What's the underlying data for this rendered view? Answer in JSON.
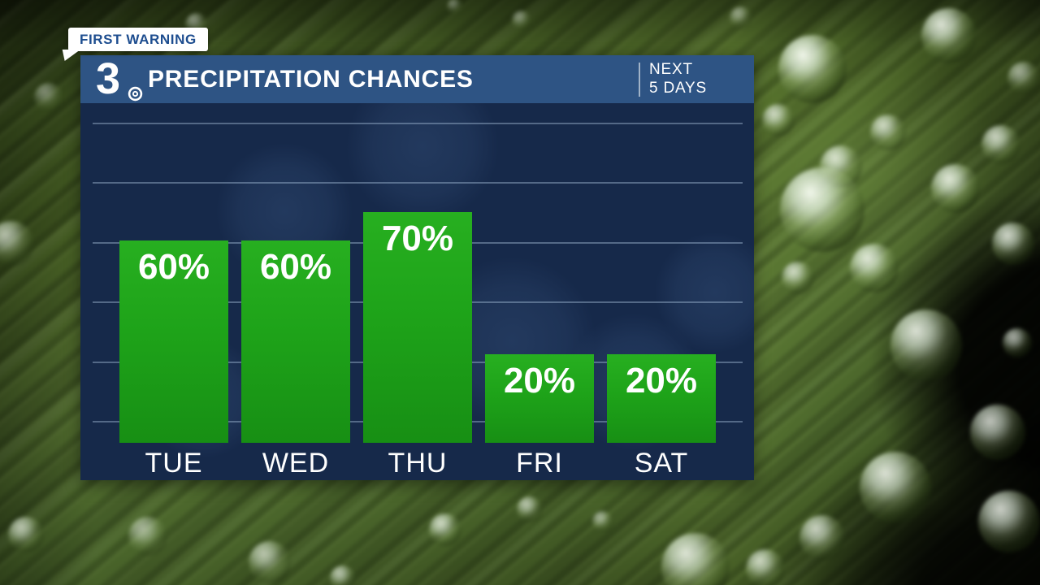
{
  "badge": {
    "label": "FIRST WARNING"
  },
  "header": {
    "station_logo": "3",
    "title": "PRECIPITATION CHANCES",
    "period_line1": "NEXT",
    "period_line2": "5 DAYS"
  },
  "chart_data": {
    "type": "bar",
    "title": "PRECIPITATION CHANCES",
    "subtitle": "NEXT 5 DAYS",
    "categories": [
      "TUE",
      "WED",
      "THU",
      "FRI",
      "SAT"
    ],
    "values": [
      60,
      60,
      70,
      20,
      20
    ],
    "unit": "%",
    "value_labels": [
      "60%",
      "60%",
      "70%",
      "20%",
      "20%"
    ],
    "ylim": [
      0,
      100
    ],
    "grid": true,
    "gridline_count": 6,
    "legend": false,
    "colors": {
      "bar_green": "#1ea319",
      "panel_navy": "#16294a",
      "header_blue": "#2e5484",
      "gridline": "#a0b7d3",
      "value_text": "#ffffff",
      "badge_text": "#1d4d8f"
    }
  }
}
